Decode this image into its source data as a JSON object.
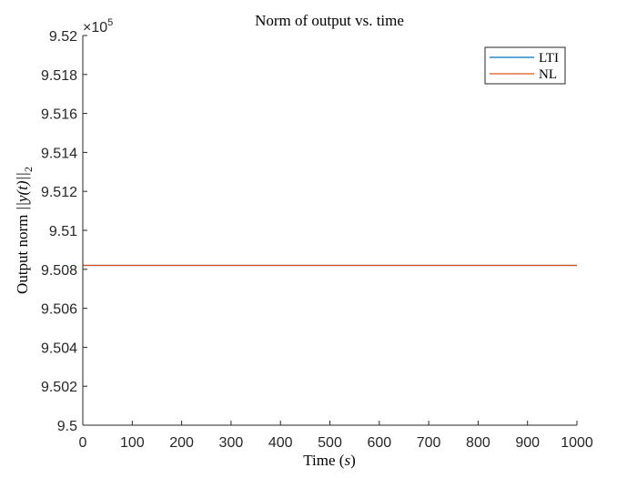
{
  "chart_data": {
    "type": "line",
    "title": "Norm of output vs. time",
    "xlabel_prefix": "Time (",
    "xlabel_var": "s",
    "xlabel_suffix": ")",
    "ylabel_prefix": "Output norm ",
    "ylabel_math": "||y(t)||",
    "ylabel_sub": "2",
    "y_multiplier": "×10",
    "y_multiplier_exp": "5",
    "xlim": [
      0,
      1000
    ],
    "ylim": [
      9.5,
      9.52
    ],
    "x_ticks": [
      0,
      100,
      200,
      300,
      400,
      500,
      600,
      700,
      800,
      900,
      1000
    ],
    "x_tick_labels": [
      "0",
      "100",
      "200",
      "300",
      "400",
      "500",
      "600",
      "700",
      "800",
      "900",
      "1000"
    ],
    "y_ticks": [
      9.5,
      9.502,
      9.504,
      9.506,
      9.508,
      9.51,
      9.512,
      9.514,
      9.516,
      9.518,
      9.52
    ],
    "y_tick_labels": [
      "9.5",
      "9.502",
      "9.504",
      "9.506",
      "9.508",
      "9.51",
      "9.512",
      "9.514",
      "9.516",
      "9.518",
      "9.52"
    ],
    "grid": false,
    "legend_position": "top-right",
    "series": [
      {
        "name": "LTI",
        "color": "#0072BD",
        "x": [
          0,
          1000
        ],
        "y": [
          9.5082,
          9.5082
        ]
      },
      {
        "name": "NL",
        "color": "#D95319",
        "x": [
          0,
          1000
        ],
        "y": [
          9.5082,
          9.5082
        ]
      }
    ]
  }
}
